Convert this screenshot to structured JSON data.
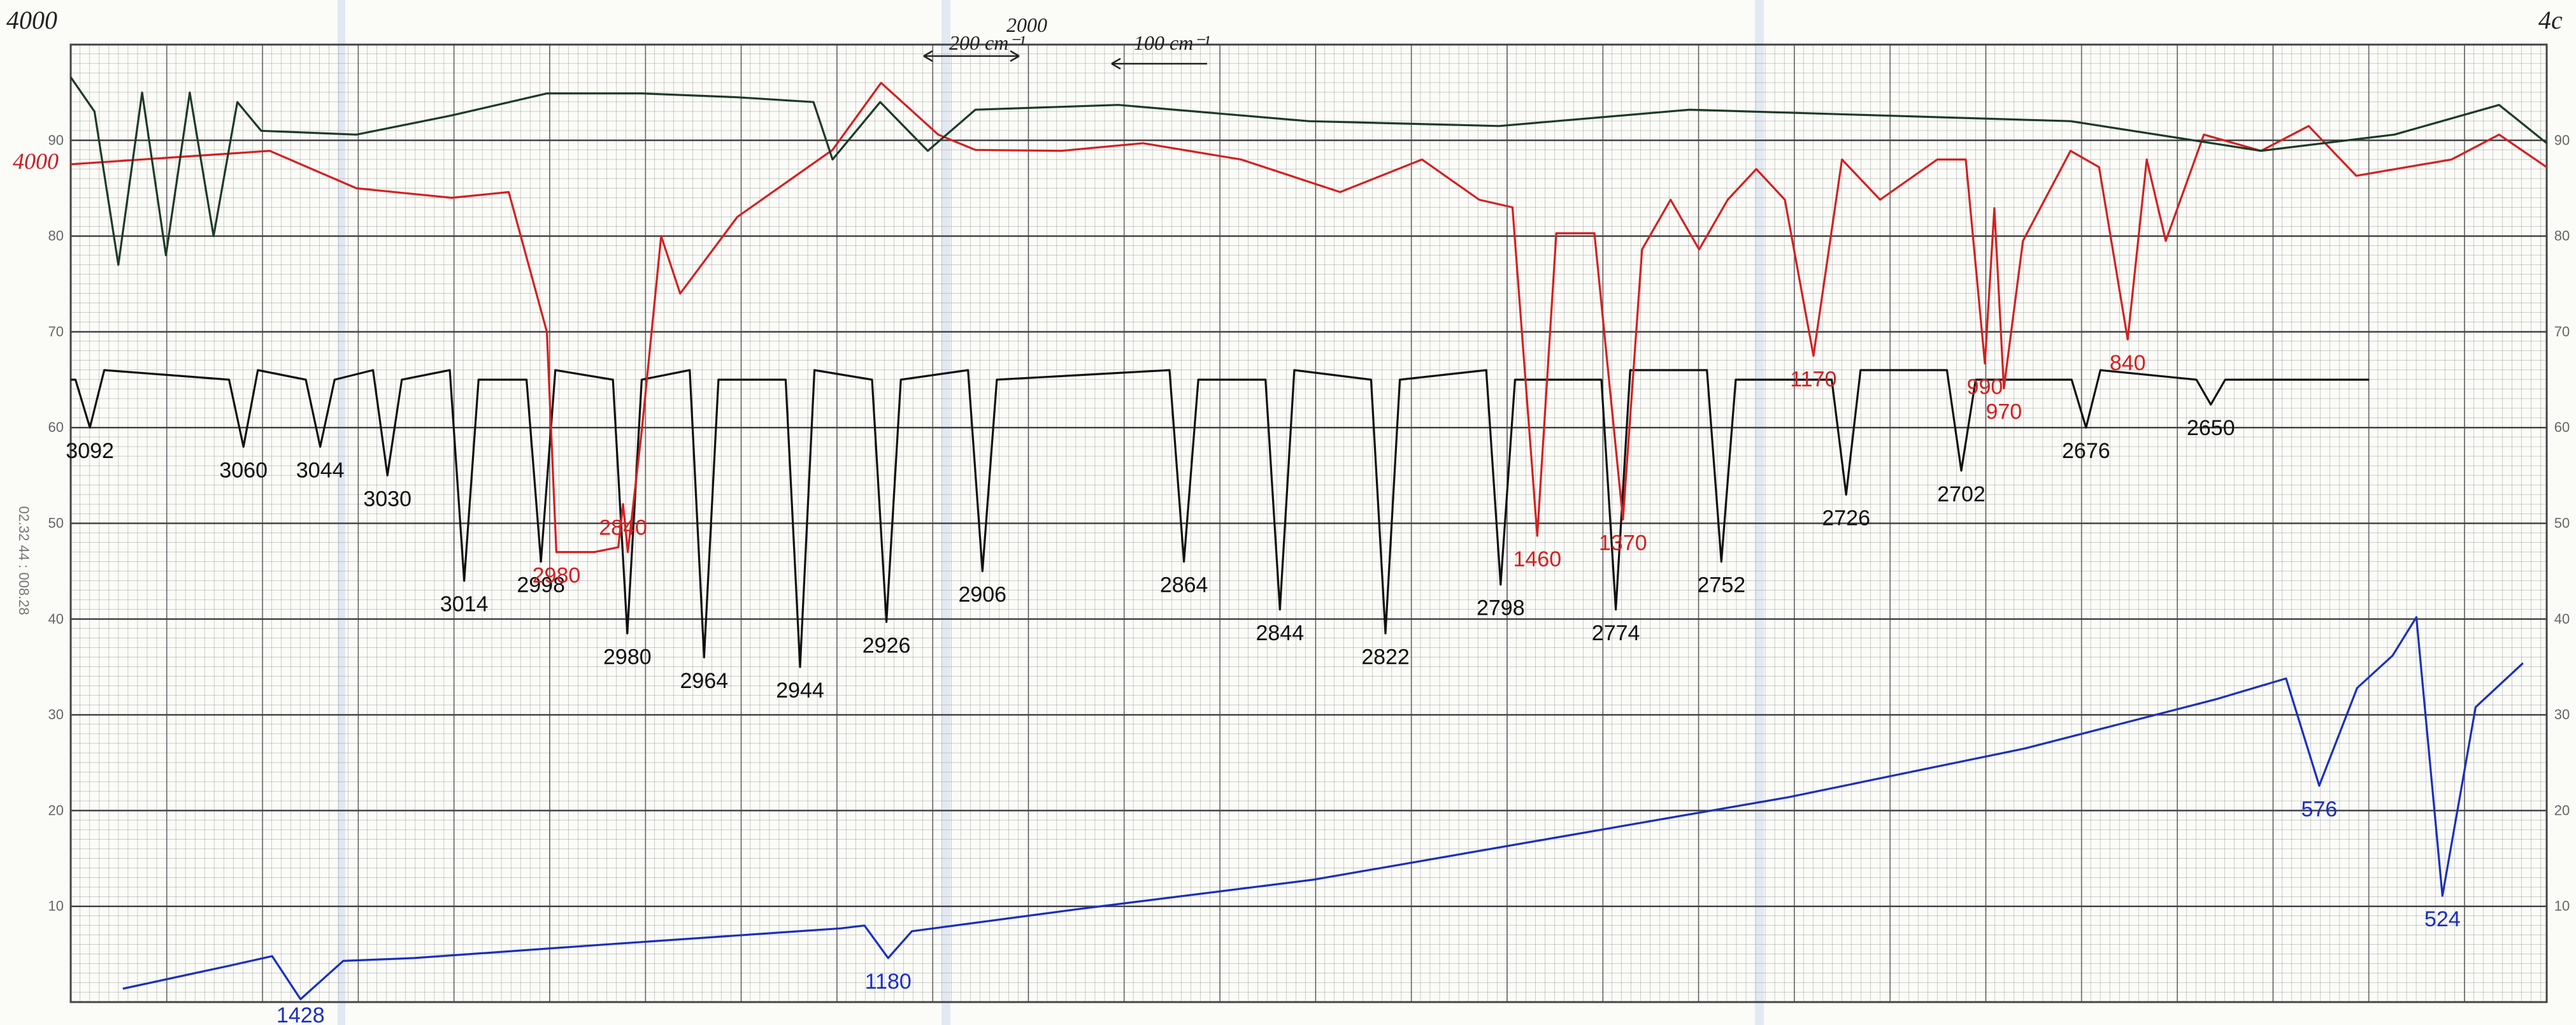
{
  "chart_data": {
    "type": "line",
    "ylim": [
      0,
      100
    ],
    "yticks": [
      10,
      20,
      30,
      40,
      50,
      60,
      70,
      80,
      90
    ],
    "grid": true,
    "annotations": [
      "4000",
      "4000",
      "200 cm⁻¹",
      "2000",
      "100 cm⁻¹",
      "4c",
      "02.32 44 : 008.28"
    ],
    "series": [
      {
        "color": "#111111",
        "xlim": [
          3096,
          2580
        ],
        "x": [
          3096,
          3095,
          3092,
          3089,
          3063,
          3060,
          3057,
          3047,
          3044,
          3041,
          3033,
          3030,
          3027,
          3017,
          3014,
          3011,
          3001,
          2998,
          2995,
          2983,
          2980,
          2977,
          2967,
          2964,
          2961,
          2947,
          2944,
          2941,
          2929,
          2926,
          2923,
          2909,
          2906,
          2903,
          2867,
          2864,
          2861,
          2847,
          2844,
          2841,
          2825,
          2822,
          2819,
          2801,
          2798,
          2795,
          2777,
          2774,
          2771,
          2755,
          2752,
          2749,
          2729,
          2726,
          2723,
          2705,
          2702,
          2699,
          2679,
          2676,
          2673,
          2653,
          2650,
          2647,
          2617
        ],
        "values": [
          65,
          65,
          60,
          66,
          65,
          58,
          66,
          65,
          58,
          65,
          66,
          55,
          65,
          66,
          44,
          65,
          65,
          46,
          66,
          65,
          38.5,
          65,
          66,
          36,
          65,
          65,
          35,
          66,
          65,
          39.7,
          65,
          66,
          45,
          65,
          66,
          46,
          65,
          65,
          41,
          66,
          65,
          38.5,
          65,
          66,
          43.6,
          65,
          65,
          41,
          66,
          66,
          46,
          65,
          65,
          53,
          66,
          66,
          55.5,
          65,
          65,
          60,
          66,
          65,
          62.4,
          65,
          65
        ],
        "peaks": [
          3092,
          3060,
          3044,
          3030,
          3014,
          2998,
          2980,
          2964,
          2944,
          2926,
          2906,
          2864,
          2844,
          2822,
          2798,
          2774,
          2752,
          2726,
          2702,
          2676,
          2650
        ]
      },
      {
        "color": "#d42020",
        "xlim": [
          4000,
          400
        ],
        "x_break": 2000,
        "x": [
          4000,
          3582,
          3400,
          3200,
          3080,
          3000,
          2980,
          2900,
          2850,
          2840,
          2830,
          2800,
          2760,
          2720,
          2600,
          2400,
          2298,
          2178,
          2100,
          1960,
          1874,
          1771,
          1667,
          1581,
          1521,
          1486,
          1460,
          1440,
          1400,
          1370,
          1350,
          1320,
          1290,
          1260,
          1230,
          1200,
          1170,
          1140,
          1100,
          1040,
          1010,
          990,
          980,
          970,
          950,
          900,
          870,
          840,
          820,
          800,
          760,
          700,
          650,
          600,
          500,
          450,
          400
        ],
        "values": [
          87.5,
          88.9,
          85,
          84,
          84.6,
          70,
          47,
          47,
          47.5,
          52,
          47,
          60,
          80,
          74,
          82,
          89,
          96,
          90.6,
          89,
          88.9,
          89.7,
          88,
          84.6,
          88,
          83.8,
          83,
          48.7,
          80.3,
          80.3,
          50.4,
          78.6,
          83.8,
          78.6,
          83.8,
          87,
          83.8,
          67.5,
          88,
          83.8,
          88,
          88,
          66.7,
          82.9,
          64.1,
          79.5,
          88.9,
          87.2,
          69.2,
          88,
          79.5,
          90.6,
          88.9,
          91.5,
          86.3,
          88,
          90.6,
          87.2
        ],
        "peaks": [
          2980,
          2840,
          1460,
          1370,
          1170,
          990,
          970,
          840
        ]
      },
      {
        "color": "#1d3b25",
        "xlim": [
          4000,
          400
        ],
        "x_break": 2000,
        "x": [
          4000,
          3950,
          3900,
          3850,
          3800,
          3750,
          3700,
          3650,
          3600,
          3400,
          3200,
          3000,
          2800,
          2600,
          2440,
          2400,
          2300,
          2200,
          2100,
          1900,
          1700,
          1500,
          1300,
          1100,
          900,
          700,
          560,
          450,
          400
        ],
        "values": [
          96.6,
          93,
          77,
          95,
          78,
          95,
          80,
          94,
          91,
          90.6,
          92.6,
          94.9,
          94.9,
          94.5,
          94,
          88,
          94,
          88.9,
          93.2,
          93.7,
          92,
          91.5,
          93.2,
          92.6,
          92,
          88.9,
          90.6,
          93.7,
          89.7
        ],
        "peaks": []
      },
      {
        "color": "#1a2fc0",
        "xlim": [
          1525,
          480
        ],
        "x": [
          1503,
          1458,
          1440,
          1428,
          1410,
          1380,
          1300,
          1200,
          1190,
          1180,
          1170,
          1100,
          1000,
          900,
          800,
          700,
          620,
          590,
          576,
          560,
          545,
          535,
          524,
          510,
          490
        ],
        "values": [
          1.4,
          3.8,
          4.8,
          0.3,
          4.3,
          4.6,
          6,
          7.7,
          8,
          4.6,
          7.4,
          9.7,
          12.8,
          17.1,
          21.4,
          26.5,
          31.6,
          33.8,
          22.6,
          32.8,
          36.2,
          40.2,
          11.1,
          30.8,
          35.4
        ],
        "peaks": [
          1428,
          1180,
          576,
          524
        ]
      }
    ]
  }
}
